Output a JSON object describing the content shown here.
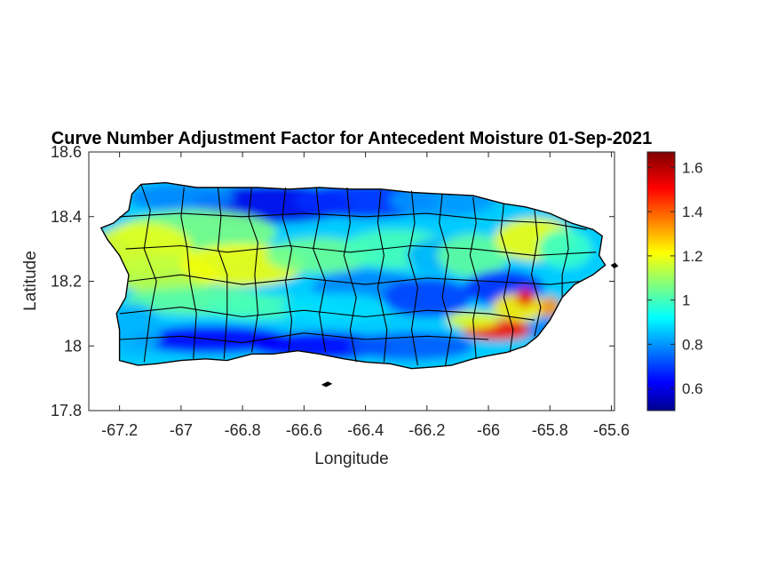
{
  "chart_data": {
    "type": "heatmap",
    "title": "Curve Number Adjustment Factor for Antecedent Moisture 01-Sep-2021",
    "xlabel": "Longitude",
    "ylabel": "Latitude",
    "xlim": [
      -67.3,
      -65.59
    ],
    "ylim": [
      17.8,
      18.6
    ],
    "xticks": [
      -67.2,
      -67,
      -66.8,
      -66.6,
      -66.4,
      -66.2,
      -66,
      -65.8,
      -65.6
    ],
    "xtick_labels": [
      "-67.2",
      "-67",
      "-66.8",
      "-66.6",
      "-66.4",
      "-66.2",
      "-66",
      "-65.8",
      "-65.6"
    ],
    "yticks": [
      17.8,
      18,
      18.2,
      18.4,
      18.6
    ],
    "ytick_labels": [
      "17.8",
      "18",
      "18.2",
      "18.4",
      "18.6"
    ],
    "colorbar": {
      "colormap": "jet",
      "range": [
        0.5,
        1.67
      ],
      "ticks": [
        0.6,
        0.8,
        1,
        1.2,
        1.4,
        1.6
      ],
      "tick_labels": [
        "0.6",
        "0.8",
        "1",
        "1.2",
        "1.4",
        "1.6"
      ]
    },
    "grid": false,
    "boundaries": "municipal boundaries of Puerto Rico (black outlines)",
    "regions_approx": [
      {
        "lon": -67.1,
        "lat": 18.3,
        "value": 1.2
      },
      {
        "lon": -66.8,
        "lat": 18.22,
        "value": 1.22
      },
      {
        "lon": -66.7,
        "lat": 18.45,
        "value": 0.6
      },
      {
        "lon": -66.5,
        "lat": 18.0,
        "value": 0.65
      },
      {
        "lon": -66.2,
        "lat": 18.15,
        "value": 0.72
      },
      {
        "lon": -65.95,
        "lat": 18.05,
        "value": 1.45
      },
      {
        "lon": -65.85,
        "lat": 18.32,
        "value": 1.2
      }
    ]
  },
  "colors": {
    "background": "#ffffff",
    "axes_background": "#ffffff",
    "boundary": "#000000",
    "axis": "#262626"
  }
}
